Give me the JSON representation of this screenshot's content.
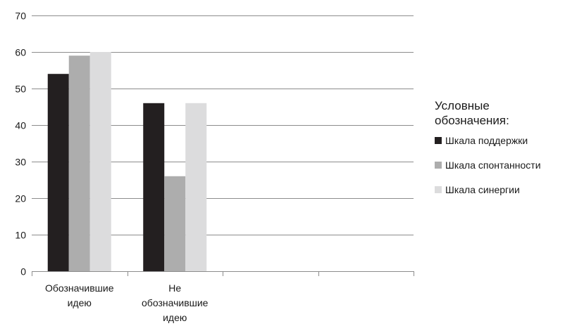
{
  "colors": {
    "series_1": "#231f20",
    "series_2": "#adadad",
    "series_3": "#dcdcdd",
    "grid": "#8c8c8c",
    "axis": "#8c8c8c"
  },
  "legend": {
    "title_line_1": "Условные",
    "title_line_2": "обозначения:"
  },
  "chart_data": {
    "type": "bar",
    "categories": [
      [
        "Обозначившие",
        "идею"
      ],
      [
        "Не",
        "обозначившие",
        "идею"
      ],
      [
        ""
      ],
      [
        ""
      ]
    ],
    "series": [
      {
        "name": "Шкала поддержки",
        "values": [
          54,
          46,
          null,
          null
        ]
      },
      {
        "name": "Шкала спонтанности",
        "values": [
          59,
          26,
          null,
          null
        ]
      },
      {
        "name": "Шкала синергии",
        "values": [
          60,
          46,
          null,
          null
        ]
      }
    ],
    "ylim": [
      0,
      70
    ],
    "yticks": [
      "0",
      "10",
      "20",
      "30",
      "40",
      "50",
      "60",
      "70"
    ],
    "grid": true,
    "legend_position": "right"
  }
}
